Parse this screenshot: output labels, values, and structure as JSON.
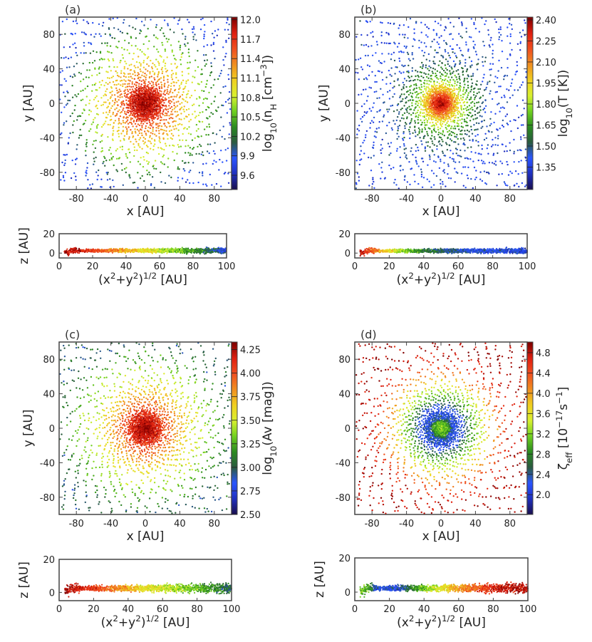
{
  "chart_data": [
    {
      "panel_label": "(a)",
      "type": "scatter",
      "xlabel": "x [AU]",
      "ylabel": "y [AU]",
      "xlim": [
        -100,
        100
      ],
      "ylim": [
        -100,
        100
      ],
      "xticks": [
        "-80",
        "-40",
        "0",
        "40",
        "80"
      ],
      "yticks": [
        "-80",
        "-40",
        "0",
        "40",
        "80"
      ],
      "colorbar": {
        "label_parts": [
          {
            "t": "log",
            "s": ""
          },
          {
            "t": "10",
            "s": "sub"
          },
          {
            "t": "(n",
            "s": ""
          },
          {
            "t": "H",
            "s": "sub"
          },
          {
            "t": " [cm",
            "s": ""
          },
          {
            "t": "−3",
            "s": "sup"
          },
          {
            "t": "])",
            "s": ""
          }
        ],
        "range": [
          9.38,
          12.04
        ],
        "ticks": [
          "9.6",
          "9.9",
          "10.2",
          "10.5",
          "10.8",
          "11.1",
          "11.4",
          "11.7",
          "12.0"
        ]
      },
      "radial_profile": [
        [
          0,
          12.0
        ],
        [
          15,
          11.8
        ],
        [
          30,
          11.4
        ],
        [
          50,
          11.0
        ],
        [
          70,
          10.6
        ],
        [
          90,
          10.1
        ],
        [
          100,
          9.8
        ]
      ],
      "side_plot": {
        "xlabel_parts": [
          {
            "t": "(x",
            "s": ""
          },
          {
            "t": "2",
            "s": "sup"
          },
          {
            "t": "+y",
            "s": ""
          },
          {
            "t": "2",
            "s": "sup"
          },
          {
            "t": ")",
            "s": ""
          },
          {
            "t": "1/2",
            "s": "sup"
          },
          {
            "t": " [AU]",
            "s": ""
          }
        ],
        "ylabel": "z [AU]",
        "xlim": [
          0,
          100
        ],
        "ylim": [
          -5,
          20
        ],
        "xticks": [
          "0",
          "20",
          "40",
          "60",
          "80",
          "100"
        ],
        "yticks": [
          "0",
          "20"
        ],
        "z_mean": 2.5
      }
    },
    {
      "panel_label": "(b)",
      "type": "scatter",
      "xlabel": "x [AU]",
      "ylabel": "y [AU]",
      "xlim": [
        -100,
        100
      ],
      "ylim": [
        -100,
        100
      ],
      "xticks": [
        "-80",
        "-40",
        "0",
        "40",
        "80"
      ],
      "yticks": [
        "-80",
        "-40",
        "0",
        "40",
        "80"
      ],
      "colorbar": {
        "label_parts": [
          {
            "t": "log",
            "s": ""
          },
          {
            "t": "10",
            "s": "sub"
          },
          {
            "t": "(T [K])",
            "s": ""
          }
        ],
        "range": [
          1.19,
          2.42
        ],
        "ticks": [
          "1.35",
          "1.50",
          "1.65",
          "1.80",
          "1.95",
          "2.10",
          "2.25",
          "2.40"
        ]
      },
      "radial_profile": [
        [
          0,
          2.4
        ],
        [
          8,
          2.25
        ],
        [
          15,
          2.05
        ],
        [
          25,
          1.85
        ],
        [
          35,
          1.65
        ],
        [
          50,
          1.5
        ],
        [
          70,
          1.42
        ],
        [
          100,
          1.38
        ]
      ],
      "side_plot": {
        "xlabel_parts": [
          {
            "t": "(x",
            "s": ""
          },
          {
            "t": "2",
            "s": "sup"
          },
          {
            "t": "+y",
            "s": ""
          },
          {
            "t": "2",
            "s": "sup"
          },
          {
            "t": ")",
            "s": ""
          },
          {
            "t": "1/2",
            "s": "sup"
          },
          {
            "t": " [AU]",
            "s": ""
          }
        ],
        "ylabel": "",
        "xlim": [
          0,
          100
        ],
        "ylim": [
          -5,
          20
        ],
        "xticks": [
          "0",
          "20",
          "40",
          "60",
          "80",
          "100"
        ],
        "yticks": [
          "0",
          "20"
        ],
        "z_mean": 2.3
      }
    },
    {
      "panel_label": "(c)",
      "type": "scatter",
      "xlabel": "x [AU]",
      "ylabel": "y [AU]",
      "xlim": [
        -100,
        100
      ],
      "ylim": [
        -100,
        100
      ],
      "xticks": [
        "-80",
        "-40",
        "0",
        "40",
        "80"
      ],
      "yticks": [
        "-80",
        "-40",
        "0",
        "40",
        "80"
      ],
      "colorbar": {
        "label_parts": [
          {
            "t": "log",
            "s": ""
          },
          {
            "t": "10",
            "s": "sub"
          },
          {
            "t": "(Av [mag])",
            "s": ""
          }
        ],
        "range": [
          2.5,
          4.33
        ],
        "ticks": [
          "2.50",
          "2.75",
          "3.00",
          "3.25",
          "3.50",
          "3.75",
          "4.00",
          "4.25"
        ]
      },
      "radial_profile": [
        [
          0,
          4.3
        ],
        [
          15,
          4.15
        ],
        [
          30,
          3.9
        ],
        [
          50,
          3.6
        ],
        [
          70,
          3.4
        ],
        [
          90,
          3.15
        ],
        [
          100,
          3.0
        ]
      ],
      "side_plot": {
        "xlabel_parts": [
          {
            "t": "(x",
            "s": ""
          },
          {
            "t": "2",
            "s": "sup"
          },
          {
            "t": "+y",
            "s": ""
          },
          {
            "t": "2",
            "s": "sup"
          },
          {
            "t": ")",
            "s": ""
          },
          {
            "t": "1/2",
            "s": "sup"
          },
          {
            "t": " [AU]",
            "s": ""
          }
        ],
        "ylabel": "z [AU]",
        "xlim": [
          0,
          100
        ],
        "ylim": [
          -5,
          20
        ],
        "xticks": [
          "0",
          "20",
          "40",
          "60",
          "80",
          "100"
        ],
        "yticks": [
          "0",
          "20"
        ],
        "z_mean": 2.5
      }
    },
    {
      "panel_label": "(d)",
      "type": "scatter",
      "xlabel": "x [AU]",
      "ylabel": "",
      "xlim": [
        -100,
        100
      ],
      "ylim": [
        -100,
        100
      ],
      "xticks": [
        "-80",
        "-40",
        "0",
        "40",
        "80"
      ],
      "yticks": [
        "-80",
        "-40",
        "0",
        "40",
        "80"
      ],
      "colorbar": {
        "label_parts": [
          {
            "t": "ζ",
            "s": ""
          },
          {
            "t": "eff",
            "s": "sub"
          },
          {
            "t": " [10",
            "s": ""
          },
          {
            "t": "−17",
            "s": "sup"
          },
          {
            "t": "s",
            "s": ""
          },
          {
            "t": "−1",
            "s": "sup"
          },
          {
            "t": "]",
            "s": ""
          }
        ],
        "range": [
          1.61,
          5.01
        ],
        "ticks": [
          "2.0",
          "2.4",
          "2.8",
          "3.2",
          "3.6",
          "4.0",
          "4.4",
          "4.8"
        ]
      },
      "radial_profile": [
        [
          0,
          3.2
        ],
        [
          8,
          3.0
        ],
        [
          12,
          2.3
        ],
        [
          25,
          2.2
        ],
        [
          35,
          2.9
        ],
        [
          50,
          3.6
        ],
        [
          65,
          4.2
        ],
        [
          80,
          4.7
        ],
        [
          100,
          4.9
        ]
      ],
      "side_plot": {
        "xlabel_parts": [
          {
            "t": "(x",
            "s": ""
          },
          {
            "t": "2",
            "s": "sup"
          },
          {
            "t": "+y",
            "s": ""
          },
          {
            "t": "2",
            "s": "sup"
          },
          {
            "t": ")",
            "s": ""
          },
          {
            "t": "1/2",
            "s": "sup"
          },
          {
            "t": " [AU]",
            "s": ""
          }
        ],
        "ylabel": "z [AU]",
        "xlim": [
          0,
          100
        ],
        "ylim": [
          -5,
          20
        ],
        "xticks": [
          "0",
          "20",
          "40",
          "60",
          "80",
          "100"
        ],
        "yticks": [
          "0",
          "20"
        ],
        "z_mean": 2.3
      }
    }
  ],
  "colors": {
    "colormap": [
      "#1a1050",
      "#2030c0",
      "#2a55ff",
      "#2a5a40",
      "#2a8a20",
      "#70d020",
      "#d8f030",
      "#f0d020",
      "#f09020",
      "#f05020",
      "#e02010",
      "#800000"
    ],
    "axis": "#444444"
  }
}
